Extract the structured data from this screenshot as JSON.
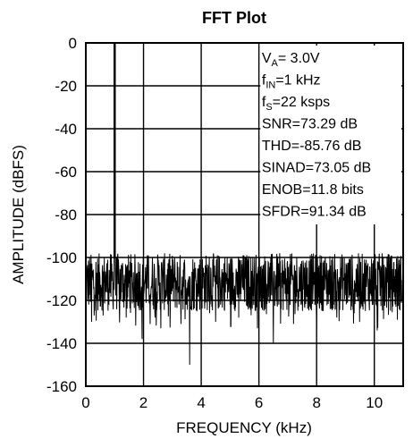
{
  "chart_data": {
    "type": "line",
    "title": "FFT Plot",
    "xlabel": "FREQUENCY (kHz)",
    "ylabel": "AMPLITUDE (dBFS)",
    "xlim": [
      0,
      11
    ],
    "ylim": [
      -160,
      0
    ],
    "x_ticks": [
      0,
      2,
      4,
      6,
      8,
      10
    ],
    "y_ticks": [
      0,
      -20,
      -40,
      -60,
      -80,
      -100,
      -120,
      -140,
      -160
    ],
    "grid": true,
    "annotations": [
      {
        "main": "V",
        "sub": "A",
        "rest": "= 3.0V"
      },
      {
        "main": "f",
        "sub": "IN",
        "rest": "=1 kHz"
      },
      {
        "main": "f",
        "sub": "S",
        "rest": "=22 ksps"
      },
      {
        "main": "SNR=73.29 dB",
        "sub": "",
        "rest": ""
      },
      {
        "main": "THD=-85.76 dB",
        "sub": "",
        "rest": ""
      },
      {
        "main": "SINAD=73.05 dB",
        "sub": "",
        "rest": ""
      },
      {
        "main": "ENOB=11.8 bits",
        "sub": "",
        "rest": ""
      },
      {
        "main": "SFDR=91.34 dB",
        "sub": "",
        "rest": ""
      }
    ],
    "series": [
      {
        "color": "#000000",
        "fundamental": {
          "x": 1.0,
          "y": 0
        },
        "noise_floor_range": [
          -125,
          -98
        ],
        "spurs": [
          {
            "x": 0.0,
            "y": -98
          },
          {
            "x": 0.2,
            "y": -130
          },
          {
            "x": 1.4,
            "y": -128
          },
          {
            "x": 1.95,
            "y": -138
          },
          {
            "x": 2.6,
            "y": -133
          },
          {
            "x": 3.3,
            "y": -131
          },
          {
            "x": 3.6,
            "y": -150
          },
          {
            "x": 4.5,
            "y": -130
          },
          {
            "x": 5.3,
            "y": -128
          },
          {
            "x": 5.95,
            "y": -133
          },
          {
            "x": 6.5,
            "y": -140
          },
          {
            "x": 7.2,
            "y": -131
          },
          {
            "x": 8.0,
            "y": -133
          },
          {
            "x": 8.7,
            "y": -128
          },
          {
            "x": 9.3,
            "y": -126
          },
          {
            "x": 10.1,
            "y": -134
          },
          {
            "x": 10.8,
            "y": -129
          }
        ]
      }
    ]
  }
}
